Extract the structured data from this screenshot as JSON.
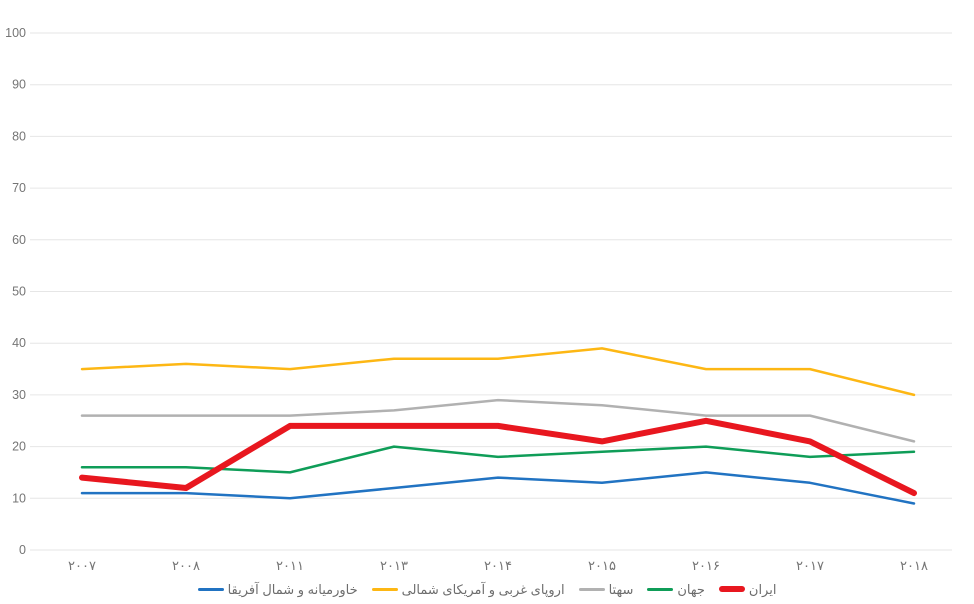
{
  "chart_data": {
    "type": "line",
    "title": "",
    "xlabel": "",
    "ylabel": "",
    "ylim": [
      0,
      100
    ],
    "ytick_step": 10,
    "yticks": [
      0,
      10,
      20,
      30,
      40,
      50,
      60,
      70,
      80,
      90,
      100
    ],
    "grid": "horizontal",
    "legend_position": "bottom-center",
    "categories": [
      "۲۰۰۷",
      "۲۰۰۸",
      "۲۰۱۱",
      "۲۰۱۳",
      "۲۰۱۴",
      "۲۰۱۵",
      "۲۰۱۶",
      "۲۰۱۷",
      "۲۰۱۸"
    ],
    "categories_latin": [
      "2007",
      "2008",
      "2011",
      "2013",
      "2014",
      "2015",
      "2016",
      "2017",
      "2018"
    ],
    "series": [
      {
        "name": "ایران",
        "color": "#e8171f",
        "thick": true,
        "z": 5,
        "values": [
          14,
          12,
          24,
          24,
          24,
          21,
          25,
          21,
          11
        ]
      },
      {
        "name": "جهان",
        "color": "#0f9d58",
        "thick": false,
        "z": 3,
        "values": [
          16,
          16,
          15,
          20,
          18,
          19,
          20,
          18,
          19
        ]
      },
      {
        "name": "سهتا",
        "color": "#b1b1b1",
        "thick": false,
        "z": 2,
        "values": [
          26,
          26,
          26,
          27,
          29,
          28,
          26,
          26,
          21
        ]
      },
      {
        "name": "اروپای غربی و آمریکای شمالی",
        "color": "#fdb714",
        "thick": false,
        "z": 1,
        "values": [
          35,
          36,
          35,
          37,
          37,
          39,
          35,
          35,
          30
        ]
      },
      {
        "name": "خاورمیانه و شمال آفریقا",
        "color": "#2173c2",
        "thick": false,
        "z": 4,
        "values": [
          11,
          11,
          10,
          12,
          14,
          13,
          15,
          13,
          9
        ]
      }
    ]
  },
  "style": {
    "grid_color": "#e6e6e6",
    "axis_label_color": "#757575",
    "background": "#ffffff"
  }
}
